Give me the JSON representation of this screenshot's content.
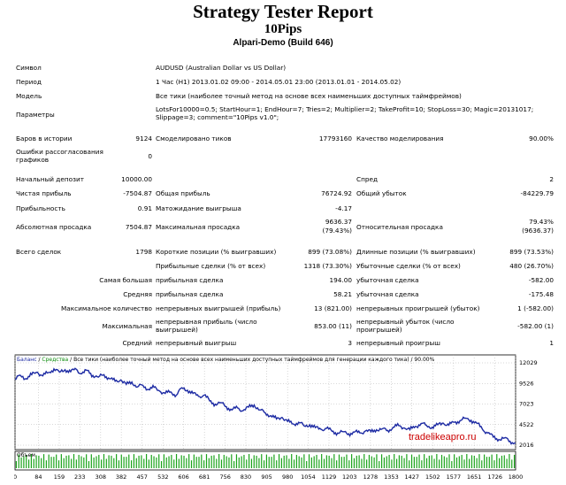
{
  "report": {
    "title": "Strategy Tester Report",
    "ea_name": "10Pips",
    "server": "Alpari-Demo (Build 646)"
  },
  "rows": {
    "symbol": {
      "label": "Символ",
      "value": "AUDUSD (Australian Dollar vs US Dollar)"
    },
    "period": {
      "label": "Период",
      "value": "1 Час (H1) 2013.01.02 09:00 - 2014.05.01 23:00 (2013.01.01 - 2014.05.02)"
    },
    "model": {
      "label": "Модель",
      "value": "Все тики (наиболее точный метод на основе всех наименьших доступных таймфреймов)"
    },
    "params": {
      "label": "Параметры",
      "value": "LotsFor10000=0.5; StartHour=1; EndHour=7; Tries=2; Multiplier=2; TakeProfit=10; StopLoss=30; Magic=20131017; Slippage=3; comment=\"10Pips v1.0\";"
    },
    "bars": {
      "label": "Баров в истории",
      "value": "9124",
      "label2": "Смоделировано тиков",
      "value2": "17793160",
      "label3": "Качество моделирования",
      "value3": "90.00%"
    },
    "errors": {
      "label": "Ошибки рассогласования графиков",
      "value": "0"
    },
    "deposit": {
      "label": "Начальный депозит",
      "value": "10000.00",
      "label3": "Спред",
      "value3": "2"
    },
    "net_profit": {
      "label": "Чистая прибыль",
      "value": "-7504.87",
      "label2": "Общая прибыль",
      "value2": "76724.92",
      "label3": "Общий убыток",
      "value3": "-84229.79"
    },
    "profit_factor": {
      "label": "Прибыльность",
      "value": "0.91",
      "label2": "Матожидание выигрыша",
      "value2": "-4.17"
    },
    "drawdown": {
      "label": "Абсолютная просадка",
      "value": "7504.87",
      "label2": "Максимальная просадка",
      "value2a": "9636.37",
      "value2b": "(79.43%)",
      "label3": "Относительная просадка",
      "value3a": "79.43%",
      "value3b": "(9636.37)"
    },
    "total_trades": {
      "label": "Всего сделок",
      "value": "1798",
      "label2": "Короткие позиции (% выигравших)",
      "value2": "899 (73.08%)",
      "label3": "Длинные позиции (% выигравших)",
      "value3": "899 (73.53%)"
    },
    "profit_trades": {
      "label2": "Прибыльные сделки (% от всех)",
      "value2": "1318 (73.30%)",
      "label3": "Убыточные сделки (% от всех)",
      "value3": "480 (26.70%)"
    },
    "largest": {
      "label": "Самая большая",
      "label2": "прибыльная сделка",
      "value2": "194.00",
      "label3": "убыточная сделка",
      "value3": "-582.00"
    },
    "average": {
      "label": "Средняя",
      "label2": "прибыльная сделка",
      "value2": "58.21",
      "label3": "убыточная сделка",
      "value3": "-175.48"
    },
    "max_count": {
      "label": "Максимальное количество",
      "label2": "непрерывных выигрышей (прибыль)",
      "value2": "13 (821.00)",
      "label3": "непрерывных проигрышей (убыток)",
      "value3": "1 (-582.00)"
    },
    "maximal": {
      "label": "Максимальная",
      "label2": "непрерывная прибыль (число выигрышей)",
      "value2": "853.00 (11)",
      "label3": "непрерывный убыток (число проигрышей)",
      "value3": "-582.00 (1)"
    },
    "avg_consec": {
      "label": "Средний",
      "label2": "непрерывный выигрыш",
      "value2": "3",
      "label3": "непрерывный проигрыш",
      "value3": "1"
    }
  },
  "chart_data": {
    "type": "line",
    "legend": "Баланс / Средства / Все тики (наиболее точный метод на основе всех наименьших доступных таймфреймов для генерации каждого тика) / 90.00%",
    "legend_parts": {
      "balance": "Баланс",
      "equity": "Средства",
      "rest": "Все тики (наиболее точный метод на основе всех наименьших доступных таймфреймов для генерации каждого тика) / 90.00%"
    },
    "y_ticks": [
      "12029",
      "9526",
      "7023",
      "4522",
      "2016"
    ],
    "ylim": [
      2016,
      12029
    ],
    "x_ticks": [
      "0",
      "84",
      "159",
      "233",
      "308",
      "382",
      "457",
      "532",
      "606",
      "681",
      "756",
      "830",
      "905",
      "980",
      "1054",
      "1129",
      "1203",
      "1278",
      "1353",
      "1427",
      "1502",
      "1577",
      "1651",
      "1726",
      "1800"
    ],
    "xlim": [
      0,
      1800
    ],
    "volume_label": "Объем",
    "balance_points": [
      [
        0,
        10000
      ],
      [
        20,
        10500
      ],
      [
        40,
        10100
      ],
      [
        60,
        10600
      ],
      [
        80,
        10900
      ],
      [
        100,
        10450
      ],
      [
        120,
        10850
      ],
      [
        140,
        11300
      ],
      [
        160,
        10900
      ],
      [
        180,
        11200
      ],
      [
        200,
        10950
      ],
      [
        220,
        11250
      ],
      [
        240,
        10700
      ],
      [
        260,
        11100
      ],
      [
        280,
        10500
      ],
      [
        300,
        10300
      ],
      [
        320,
        10600
      ],
      [
        340,
        10100
      ],
      [
        360,
        9800
      ],
      [
        380,
        9950
      ],
      [
        400,
        9400
      ],
      [
        420,
        9700
      ],
      [
        440,
        9100
      ],
      [
        460,
        9300
      ],
      [
        480,
        8800
      ],
      [
        500,
        9050
      ],
      [
        520,
        8600
      ],
      [
        540,
        8300
      ],
      [
        560,
        8500
      ],
      [
        580,
        8100
      ],
      [
        600,
        9000
      ],
      [
        620,
        8700
      ],
      [
        640,
        8300
      ],
      [
        660,
        7950
      ],
      [
        680,
        8100
      ],
      [
        700,
        7400
      ],
      [
        720,
        7000
      ],
      [
        740,
        7200
      ],
      [
        760,
        6700
      ],
      [
        780,
        6300
      ],
      [
        800,
        6550
      ],
      [
        820,
        6200
      ],
      [
        840,
        6650
      ],
      [
        860,
        6900
      ],
      [
        880,
        6300
      ],
      [
        900,
        5950
      ],
      [
        920,
        5600
      ],
      [
        940,
        5200
      ],
      [
        960,
        5400
      ],
      [
        980,
        4900
      ],
      [
        1000,
        4600
      ],
      [
        1020,
        4800
      ],
      [
        1040,
        4350
      ],
      [
        1060,
        4500
      ],
      [
        1080,
        4150
      ],
      [
        1100,
        3950
      ],
      [
        1120,
        4050
      ],
      [
        1140,
        3700
      ],
      [
        1160,
        3500
      ],
      [
        1180,
        3650
      ],
      [
        1200,
        3400
      ],
      [
        1220,
        3600
      ],
      [
        1240,
        3500
      ],
      [
        1260,
        3750
      ],
      [
        1280,
        3650
      ],
      [
        1300,
        3900
      ],
      [
        1320,
        4000
      ],
      [
        1340,
        3800
      ],
      [
        1360,
        4200
      ],
      [
        1380,
        4400
      ],
      [
        1400,
        4100
      ],
      [
        1420,
        3900
      ],
      [
        1440,
        4300
      ],
      [
        1460,
        4650
      ],
      [
        1480,
        4400
      ],
      [
        1500,
        4200
      ],
      [
        1520,
        4500
      ],
      [
        1540,
        4700
      ],
      [
        1560,
        4450
      ],
      [
        1580,
        4800
      ],
      [
        1600,
        5000
      ],
      [
        1620,
        5300
      ],
      [
        1640,
        5050
      ],
      [
        1660,
        4700
      ],
      [
        1680,
        4000
      ],
      [
        1700,
        3500
      ],
      [
        1720,
        3000
      ],
      [
        1740,
        2700
      ],
      [
        1760,
        2900
      ],
      [
        1780,
        2500
      ],
      [
        1800,
        2300
      ]
    ]
  }
}
